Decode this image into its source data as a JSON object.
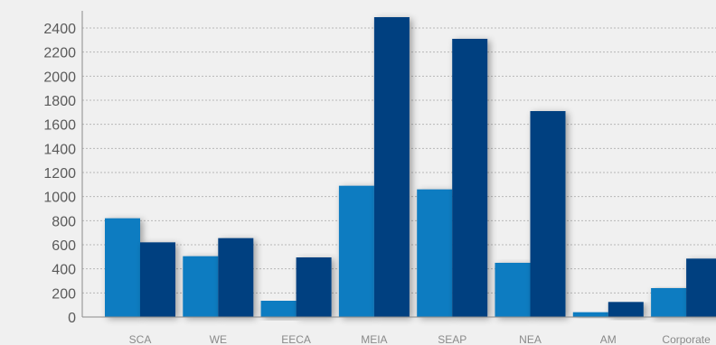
{
  "colors": {
    "background": "#f0f0f0",
    "series_a": "#0f7cc1",
    "series_b": "#053f80",
    "grid": "#b8b8b8",
    "axis": "#8a8a8a"
  },
  "chart_data": {
    "type": "bar",
    "title": "",
    "xlabel": "",
    "ylabel": "",
    "categories": [
      "SCA",
      "WE",
      "EECA",
      "MEIA",
      "SEAP",
      "NEA",
      "AM",
      "Corporate"
    ],
    "series": [
      {
        "values": [
          820,
          505,
          135,
          1090,
          1060,
          450,
          40,
          240
        ]
      },
      {
        "values": [
          620,
          655,
          495,
          2490,
          2310,
          1710,
          125,
          485
        ]
      }
    ],
    "ylim": [
      0,
      2400
    ],
    "yticks": [
      0,
      200,
      400,
      600,
      800,
      1000,
      1200,
      1400,
      1600,
      1800,
      2000,
      2200,
      2400
    ],
    "grid": true,
    "legend": "none"
  }
}
